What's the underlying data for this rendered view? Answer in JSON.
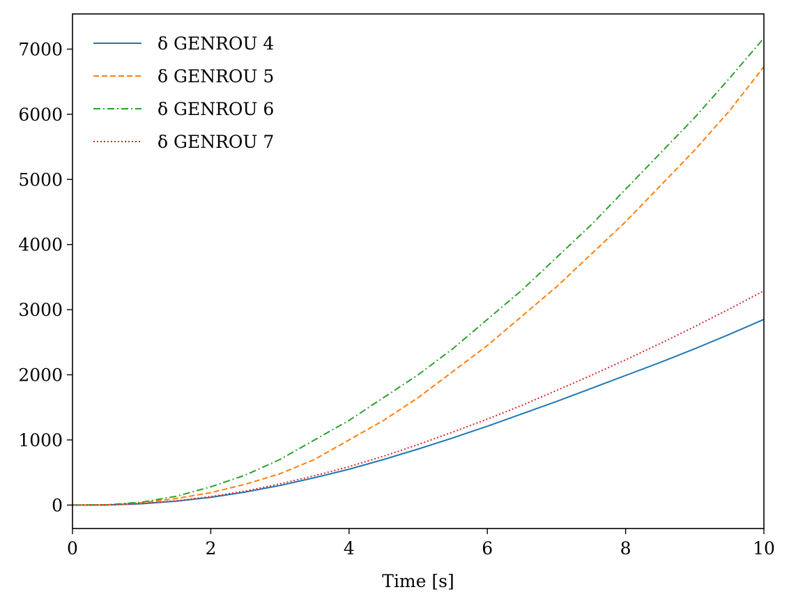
{
  "chart_data": {
    "type": "line",
    "title": "",
    "xlabel": "Time [s]",
    "ylabel": "",
    "xlim": [
      0,
      10
    ],
    "ylim": [
      -360,
      7540
    ],
    "xticks": [
      0,
      2,
      4,
      6,
      8,
      10
    ],
    "yticks": [
      0,
      1000,
      2000,
      3000,
      4000,
      5000,
      6000,
      7000
    ],
    "grid": false,
    "legend_position": "top-left",
    "x": [
      0,
      0.5,
      1,
      1.5,
      2,
      2.5,
      3,
      3.5,
      4,
      4.5,
      5,
      5.5,
      6,
      6.5,
      7,
      7.5,
      8,
      8.5,
      9,
      9.5,
      10
    ],
    "series": [
      {
        "name": "δ GENROU 4",
        "color": "#1f77b4",
        "dash": "solid",
        "values": [
          0,
          2,
          20,
          60,
          120,
          200,
          300,
          420,
          550,
          700,
          860,
          1030,
          1210,
          1400,
          1590,
          1790,
          1990,
          2190,
          2400,
          2620,
          2850
        ]
      },
      {
        "name": "δ GENROU 5",
        "color": "#ff7f0e",
        "dash": "dashed",
        "values": [
          0,
          3,
          35,
          100,
          190,
          320,
          480,
          700,
          1000,
          1300,
          1650,
          2050,
          2450,
          2900,
          3350,
          3850,
          4350,
          4900,
          5450,
          6050,
          6730
        ]
      },
      {
        "name": "δ GENROU 6",
        "color": "#2ca02c",
        "dash": "dashdot",
        "values": [
          0,
          4,
          45,
          135,
          280,
          460,
          700,
          1000,
          1300,
          1650,
          2000,
          2400,
          2850,
          3300,
          3800,
          4300,
          4850,
          5400,
          5950,
          6550,
          7170
        ]
      },
      {
        "name": "δ GENROU 7",
        "color": "#d62728",
        "dash": "dotted",
        "values": [
          0,
          2,
          22,
          65,
          130,
          215,
          325,
          450,
          590,
          750,
          930,
          1120,
          1320,
          1530,
          1760,
          1990,
          2230,
          2480,
          2740,
          3010,
          3290
        ]
      }
    ]
  }
}
